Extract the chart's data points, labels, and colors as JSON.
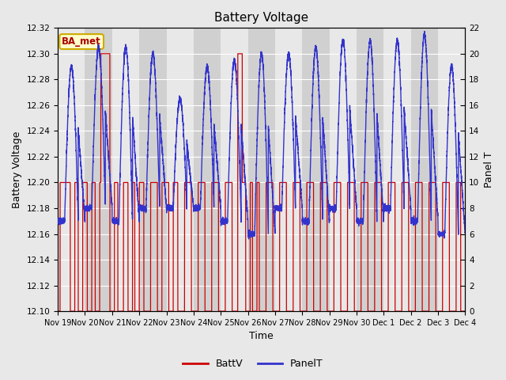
{
  "title": "Battery Voltage",
  "xlabel": "Time",
  "ylabel_left": "Battery Voltage",
  "ylabel_right": "Panel T",
  "ylim_left": [
    12.1,
    12.32
  ],
  "ylim_right": [
    0,
    22
  ],
  "yticks_left": [
    12.1,
    12.12,
    12.14,
    12.16,
    12.18,
    12.2,
    12.22,
    12.24,
    12.26,
    12.28,
    12.3,
    12.32
  ],
  "yticks_right": [
    0,
    2,
    4,
    6,
    8,
    10,
    12,
    14,
    16,
    18,
    20,
    22
  ],
  "bg_color": "#e8e8e8",
  "plot_bg_light": "#e8e8e8",
  "plot_bg_dark": "#d0d0d0",
  "legend_label_batt": "BattV",
  "legend_label_panel": "PanelT",
  "batt_color": "#cc0000",
  "panel_color": "#3333cc",
  "annotation_text": "BA_met",
  "annotation_bg": "#ffffcc",
  "annotation_border": "#ccaa00",
  "day_labels": [
    "Nov 19",
    "Nov 20",
    "Nov 21",
    "Nov 22",
    "Nov 23",
    "Nov 24",
    "Nov 25",
    "Nov 26",
    "Nov 27",
    "Nov 28",
    "Nov 29",
    "Nov 30",
    "Dec 1",
    "Dec 2",
    "Dec 3",
    "Dec 4"
  ],
  "figsize": [
    6.4,
    4.8
  ],
  "dpi": 100
}
